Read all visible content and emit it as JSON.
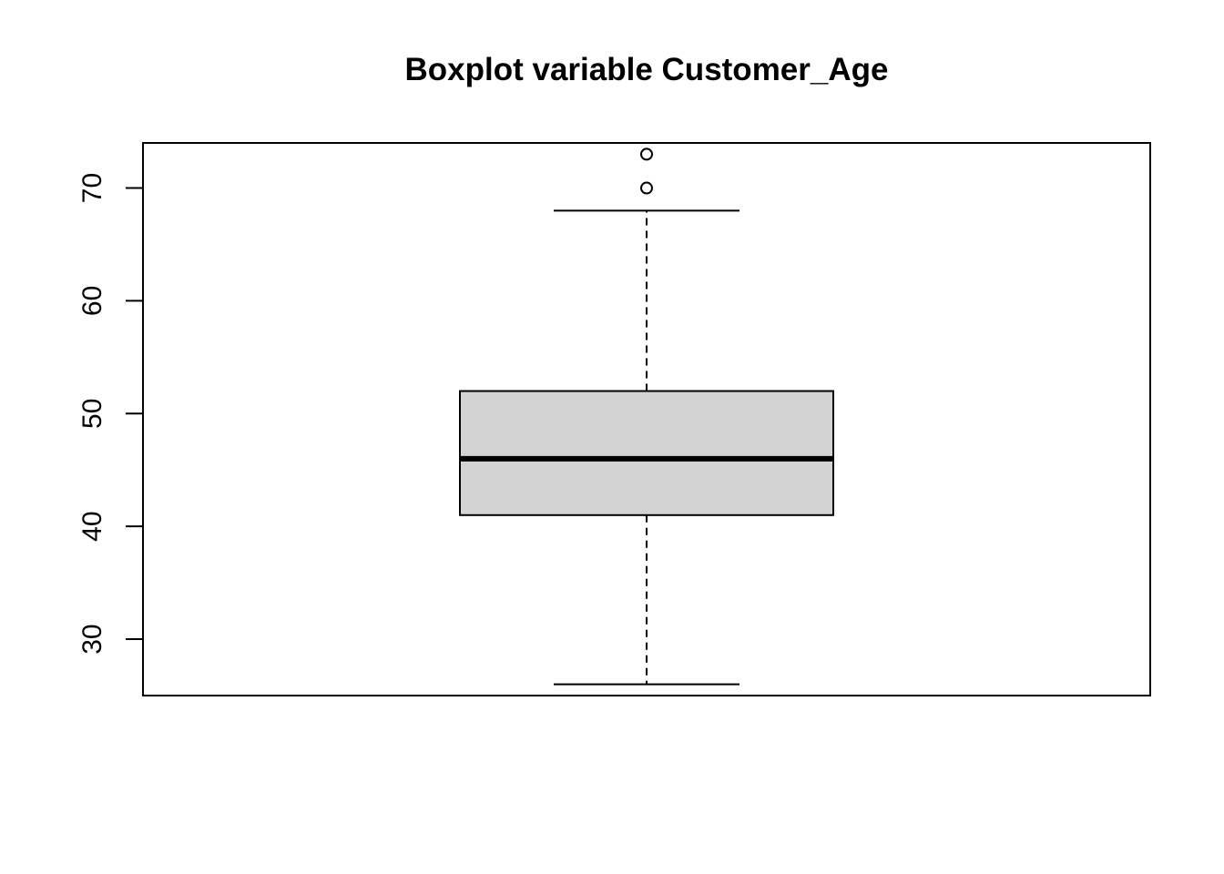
{
  "chart_data": {
    "type": "boxplot",
    "title": "Boxplot variable Customer_Age",
    "xlabel": "",
    "ylabel": "",
    "ylim": [
      25,
      74
    ],
    "yticks": [
      30,
      40,
      50,
      60,
      70
    ],
    "box": {
      "whisker_low": 26,
      "q1": 41,
      "median": 46,
      "q3": 52,
      "whisker_high": 68,
      "outliers": [
        70,
        73
      ]
    },
    "colors": {
      "box_fill": "#d3d3d3",
      "stroke": "#000000"
    }
  }
}
